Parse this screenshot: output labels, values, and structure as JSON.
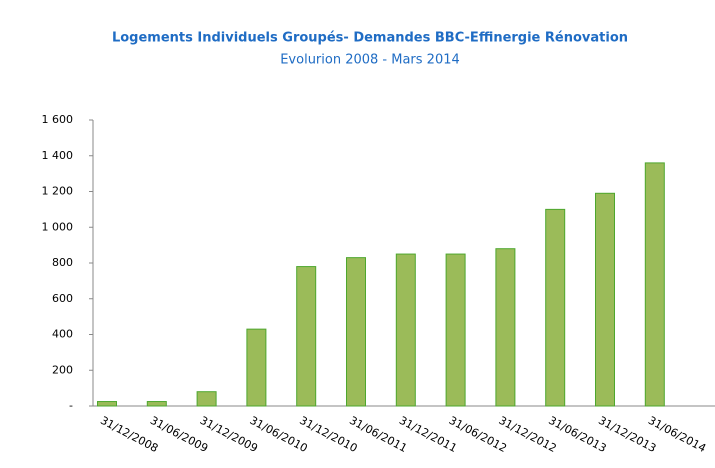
{
  "chart_data": {
    "type": "bar",
    "title": "Logements  Individuels Groupés- Demandes BBC-Effinergie Rénovation",
    "subtitle": "Evolurion 2008 - Mars 2014",
    "categories": [
      "31/12/2008",
      "31/06/2009",
      "31/12/2009",
      "31/06/2010",
      "31/12/2010",
      "31/06/2011",
      "31/12/2011",
      "31/06/2012",
      "31/12/2012",
      "31/06/2013",
      "31/12/2013",
      "31/06/2014"
    ],
    "values": [
      25,
      25,
      80,
      430,
      780,
      830,
      850,
      850,
      880,
      1100,
      1190,
      1360
    ],
    "color": "#9bbb59",
    "edge_color": "#4ea72e",
    "ylim": [
      0,
      1600
    ],
    "yticks": [
      {
        "value": 0,
        "label": "-"
      },
      200,
      400,
      600,
      800,
      {
        "value": 1000,
        "label": "1 000"
      },
      {
        "value": 1200,
        "label": "1 200"
      },
      {
        "value": 1400,
        "label": "1 400"
      },
      {
        "value": 1600,
        "label": "1 600"
      }
    ],
    "grid": false
  }
}
